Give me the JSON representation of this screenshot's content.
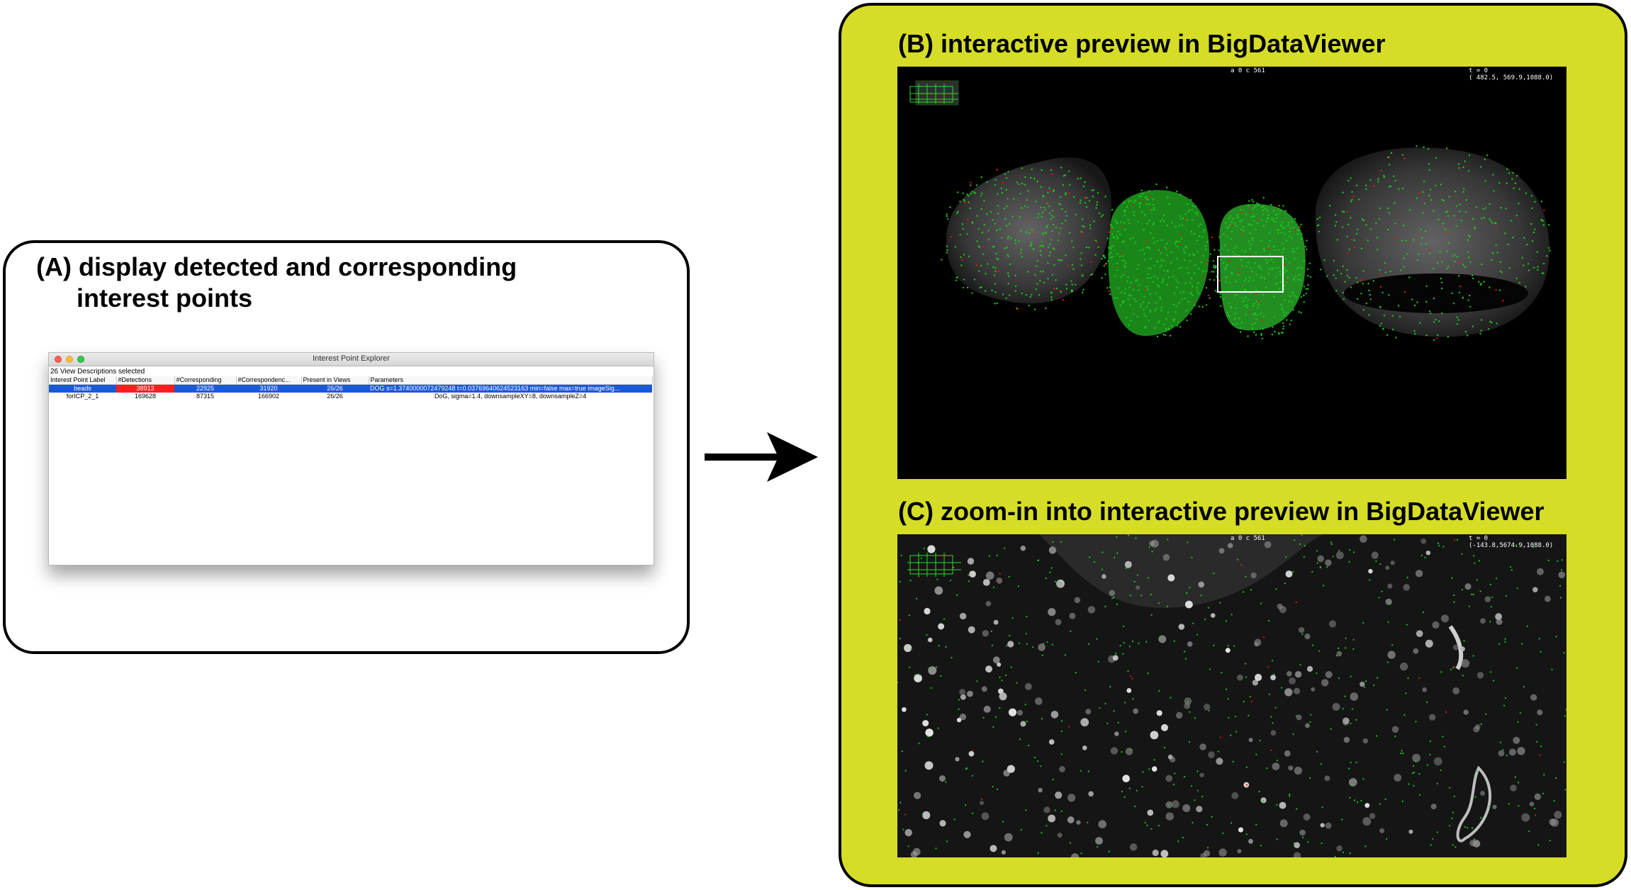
{
  "panel_a": {
    "title_line1": "(A) display detected and corresponding",
    "title_line2": "interest points",
    "window": {
      "title": "Interest Point Explorer",
      "status": "26 View Descriptions selected",
      "columns": [
        "Interest Point Label",
        "#Detections",
        "#Corresponding",
        "#Correspondenc...",
        "Present in Views",
        "Parameters"
      ],
      "rows": [
        {
          "label": "beads",
          "detections": "38913",
          "corresponding": "22925",
          "correspondences": "31920",
          "present": "26/26",
          "parameters": "DOG s=1.3740000072479248 t=0.0376964062452316​3 min=false max=true imageSig..."
        },
        {
          "label": "forICP_2_1",
          "detections": "169628",
          "corresponding": "87315",
          "correspondences": "166902",
          "present": "26/26",
          "parameters": "DoG, sigma=1.4, downsampleXY=8, downsampleZ=4"
        }
      ]
    }
  },
  "panel_b": {
    "title": "(B) interactive preview in BigDataViewer",
    "source_label": "a 0 c 561",
    "time_label": "t = 0",
    "coordinates": "( 482.5, 569.9,1088.0)"
  },
  "panel_c": {
    "title": "(C) zoom-in into interactive preview in BigDataViewer",
    "source_label": "a 0 c 561",
    "time_label": "t = 0",
    "coordinates": "(-143.8,5674.9,1088.0)"
  },
  "colors": {
    "panel_background": "#d5dd27",
    "selection_blue": "#1a59d6",
    "detections_red": "#ff1e1e",
    "interest_points_green": "#1fc71f",
    "corresponding_points_red": "#e01818"
  }
}
